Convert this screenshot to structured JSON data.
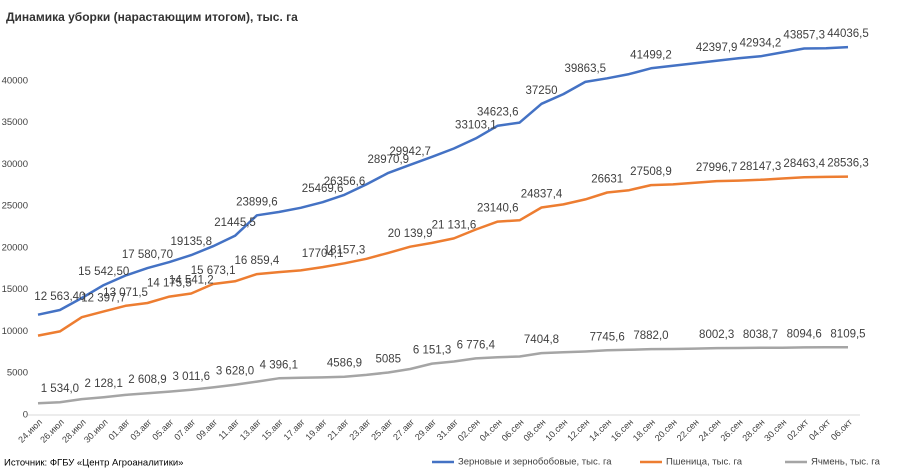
{
  "chart_data": {
    "type": "line",
    "title": "Динамика уборки (нарастающим итогом), тыс. га",
    "source": "Источник: ФГБУ «Центр Агроаналитики»",
    "categories": [
      "24.июл",
      "26.июл",
      "28.июл",
      "30.июл",
      "01.авг",
      "03.авг",
      "05.авг",
      "07.авг",
      "09.авг",
      "11.авг",
      "13.авг",
      "15.авг",
      "17.авг",
      "19.авг",
      "21.авг",
      "23.авг",
      "25.авг",
      "27.авг",
      "29.авг",
      "31.авг",
      "02.сен",
      "04.сен",
      "06.сен",
      "08.сен",
      "10.сен",
      "12.сен",
      "14.сен",
      "16.сен",
      "18.сен",
      "20.сен",
      "22.сен",
      "24.сен",
      "26.сен",
      "28.сен",
      "30.сен",
      "02.окт",
      "04.окт",
      "06.окт"
    ],
    "ylim": [
      0,
      45000
    ],
    "yticks": [
      0,
      5000,
      10000,
      15000,
      20000,
      25000,
      30000,
      35000,
      40000
    ],
    "grid": false,
    "legend": "bottom-right",
    "series": [
      {
        "name": "Зерновые и зернобобовые, тыс. га",
        "color": "#4472c4",
        "values": [
          12000,
          12563.4,
          14000,
          15542.5,
          16700,
          17580.7,
          18300,
          19135.8,
          20200,
          21445.5,
          23899.6,
          24300,
          24800,
          25469.6,
          26356.6,
          27600,
          28970.9,
          29942.7,
          30900,
          31900,
          33103.1,
          34623.6,
          35000,
          37250,
          38400,
          39863.5,
          40300,
          40800,
          41499.2,
          41800,
          42100,
          42397.9,
          42700,
          42934.2,
          43400,
          43857.3,
          43900,
          44036.5
        ],
        "value_labels": [
          null,
          "12 563,40",
          null,
          "15 542,50",
          null,
          "17 580,70",
          null,
          "19135,8",
          null,
          "21445,5",
          "23899,6",
          null,
          null,
          "25469,6",
          "26356,6",
          null,
          "28970,9",
          "29942,7",
          null,
          null,
          "33103,1",
          "34623,6",
          null,
          "37250",
          null,
          "39863,5",
          null,
          null,
          "41499,2",
          null,
          null,
          "42397,9",
          null,
          "42934,2",
          null,
          "43857,3",
          null,
          "44036,5"
        ]
      },
      {
        "name": "Пшеница, тыс. га",
        "color": "#ed7d31",
        "values": [
          9500,
          10000,
          11700,
          12397.7,
          13071.5,
          13400,
          14175.5,
          14541.2,
          15673.1,
          16000,
          16859.4,
          17100,
          17300,
          17704.1,
          18157.3,
          18700,
          19400,
          20139.9,
          20600,
          21131.6,
          22200,
          23140.6,
          23300,
          24837.4,
          25200,
          25800,
          26631,
          26900,
          27508.9,
          27600,
          27800,
          27996.7,
          28050,
          28147.3,
          28300,
          28463.4,
          28500,
          28536.3
        ],
        "value_labels": [
          null,
          null,
          null,
          "12 397,7",
          "13 071,5",
          null,
          "14 175,5",
          "14 541,2",
          "15 673,1",
          null,
          "16 859,4",
          null,
          null,
          "17704,1",
          "18157,3",
          null,
          null,
          "20 139,9",
          null,
          "21 131,6",
          null,
          "23140,6",
          null,
          "24837,4",
          null,
          null,
          "26631",
          null,
          "27508,9",
          null,
          null,
          "27996,7",
          null,
          "28147,3",
          null,
          "28463,4",
          null,
          "28536,3"
        ]
      },
      {
        "name": "Ячмень, тыс. га",
        "color": "#a5a5a5",
        "values": [
          1400,
          1534,
          1900,
          2128.1,
          2400,
          2608.9,
          2800,
          3011.6,
          3300,
          3628,
          4000,
          4396.1,
          4450,
          4500,
          4586.9,
          4800,
          5085,
          5500,
          6151.3,
          6400,
          6776.4,
          6900,
          7000,
          7404.8,
          7500,
          7600,
          7745.6,
          7800,
          7882,
          7900,
          7950,
          8002.3,
          8020,
          8038.7,
          8060,
          8094.6,
          8100,
          8109.5
        ],
        "value_labels": [
          null,
          "1 534,0",
          null,
          "2 128,1",
          null,
          "2 608,9",
          null,
          "3 011,6",
          null,
          "3 628,0",
          null,
          "4 396,1",
          null,
          null,
          "4586,9",
          null,
          "5085",
          null,
          "6 151,3",
          null,
          "6 776,4",
          null,
          null,
          "7404,8",
          null,
          null,
          "7745,6",
          null,
          "7882,0",
          null,
          null,
          "8002,3",
          null,
          "8038,7",
          null,
          "8094,6",
          null,
          "8109,5"
        ]
      }
    ]
  }
}
